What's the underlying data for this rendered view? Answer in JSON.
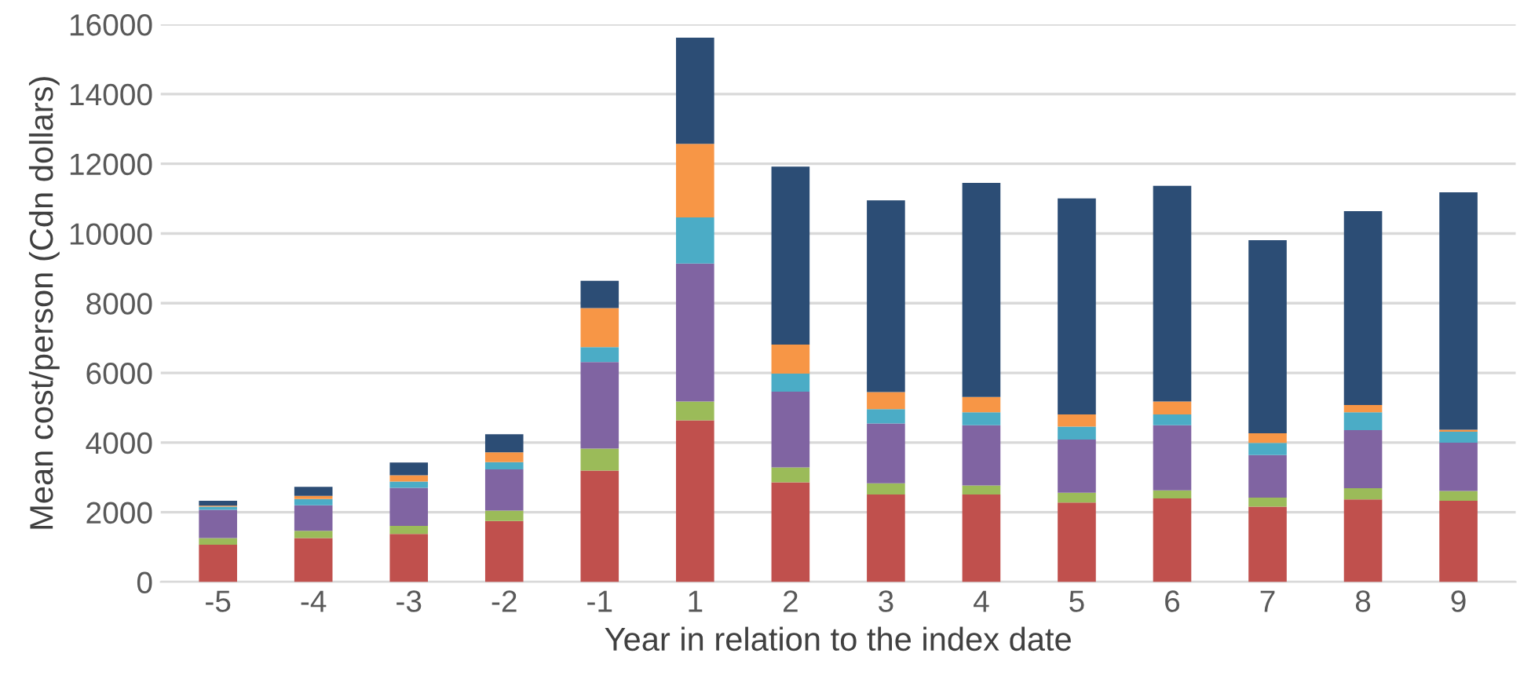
{
  "chart_data": {
    "type": "bar",
    "stacked": true,
    "xlabel": "Year in relation to the index date",
    "ylabel": "Mean cost/person (Cdn dollars)",
    "categories": [
      "-5",
      "-4",
      "-3",
      "-2",
      "-1",
      "1",
      "2",
      "3",
      "4",
      "5",
      "6",
      "7",
      "8",
      "9"
    ],
    "series": [
      {
        "color": "#c0504d",
        "values": [
          1070,
          1260,
          1380,
          1750,
          3200,
          4640,
          2860,
          2510,
          2510,
          2280,
          2400,
          2160,
          2370,
          2330
        ]
      },
      {
        "color": "#9bbb59",
        "values": [
          190,
          210,
          230,
          300,
          630,
          540,
          430,
          320,
          260,
          280,
          230,
          260,
          320,
          280
        ]
      },
      {
        "color": "#8064a2",
        "values": [
          810,
          730,
          1090,
          1180,
          2480,
          3960,
          2170,
          1720,
          1730,
          1530,
          1870,
          1220,
          1670,
          1390
        ]
      },
      {
        "color": "#4bacc6",
        "values": [
          90,
          180,
          180,
          210,
          430,
          1320,
          520,
          410,
          370,
          370,
          310,
          350,
          510,
          310
        ]
      },
      {
        "color": "#f79646",
        "values": [
          30,
          90,
          180,
          280,
          1120,
          2110,
          830,
          490,
          440,
          350,
          370,
          280,
          210,
          60
        ]
      },
      {
        "color": "#2c4d75",
        "values": [
          140,
          260,
          370,
          520,
          780,
          3050,
          5110,
          5500,
          6140,
          6200,
          6190,
          5540,
          5560,
          6810
        ]
      }
    ],
    "ylim": [
      0,
      16000
    ],
    "yticks": [
      0,
      2000,
      4000,
      6000,
      8000,
      10000,
      12000,
      14000,
      16000
    ],
    "grid": "y"
  }
}
